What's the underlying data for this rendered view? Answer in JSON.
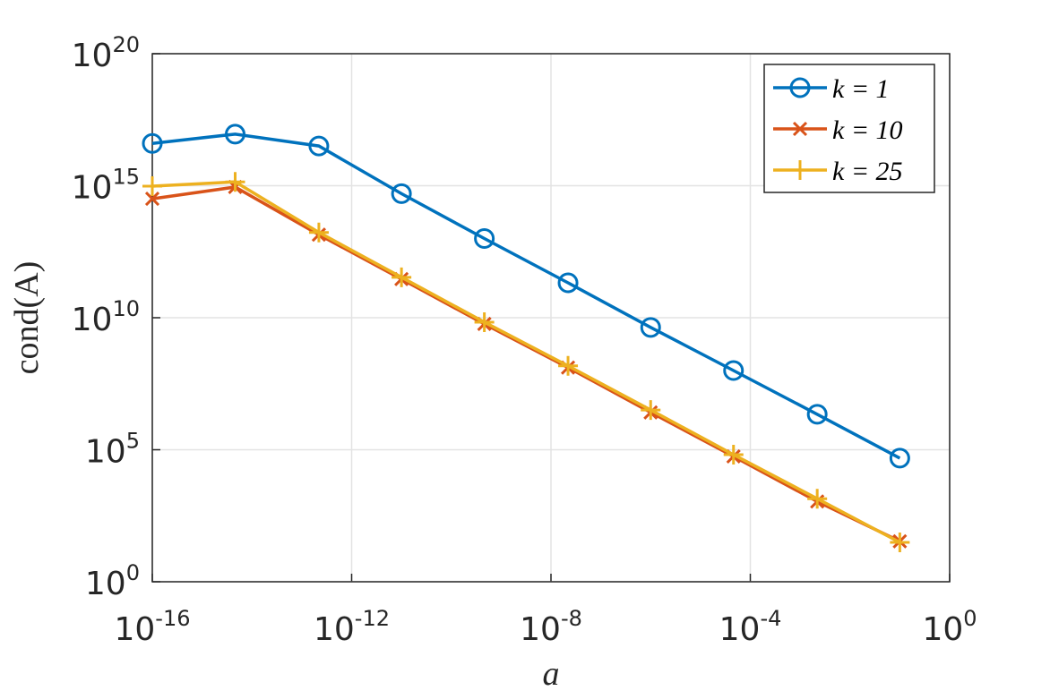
{
  "chart_data": {
    "type": "line",
    "xscale": "log",
    "yscale": "log",
    "grid": true,
    "legend": "upper right",
    "xlabel": "a",
    "ylabel": "cond(A)",
    "x": [
      1e-16,
      4.6e-15,
      2.2e-13,
      1e-11,
      4.6e-10,
      2.2e-08,
      1e-06,
      4.6e-05,
      0.0022,
      0.1
    ],
    "xlim": [
      1e-16,
      1
    ],
    "xticks": [
      {
        "value": 1e-16,
        "label": "10",
        "exponent": "-16"
      },
      {
        "value": 1e-12,
        "label": "10",
        "exponent": "-12"
      },
      {
        "value": 1e-08,
        "label": "10",
        "exponent": "-8"
      },
      {
        "value": 0.0001,
        "label": "10",
        "exponent": "-4"
      },
      {
        "value": 1,
        "label": "10",
        "exponent": "0"
      }
    ],
    "ylim": [
      1,
      1e+20
    ],
    "yticks": [
      {
        "value": 1,
        "label": "10",
        "exponent": "0"
      },
      {
        "value": 100000.0,
        "label": "10",
        "exponent": "5"
      },
      {
        "value": 10000000000.0,
        "label": "10",
        "exponent": "10"
      },
      {
        "value": 1000000000000000.0,
        "label": "10",
        "exponent": "15"
      },
      {
        "value": 1e+20,
        "label": "10",
        "exponent": "20"
      }
    ],
    "series": [
      {
        "name": "k = 1",
        "color": "#0072bd",
        "marker": "o",
        "values": [
          4e+16,
          9e+16,
          3.2e+16,
          500000000000000.0,
          10000000000000.0,
          210000000000.0,
          4300000000.0,
          100000000.0,
          2200000.0,
          48000.0
        ]
      },
      {
        "name": "k = 10",
        "color": "#d95319",
        "marker": "x",
        "values": [
          320000000000000.0,
          890000000000000.0,
          14000000000000.0,
          290000000000.0,
          5800000000.0,
          130000000.0,
          2600000.0,
          56000.0,
          1100.0,
          34
        ]
      },
      {
        "name": "k = 25",
        "color": "#edb120",
        "marker": "+",
        "values": [
          960000000000000.0,
          1400000000000000.0,
          17000000000000.0,
          340000000000.0,
          6800000000.0,
          150000000.0,
          3200000.0,
          65000.0,
          1400.0,
          31
        ]
      }
    ]
  }
}
